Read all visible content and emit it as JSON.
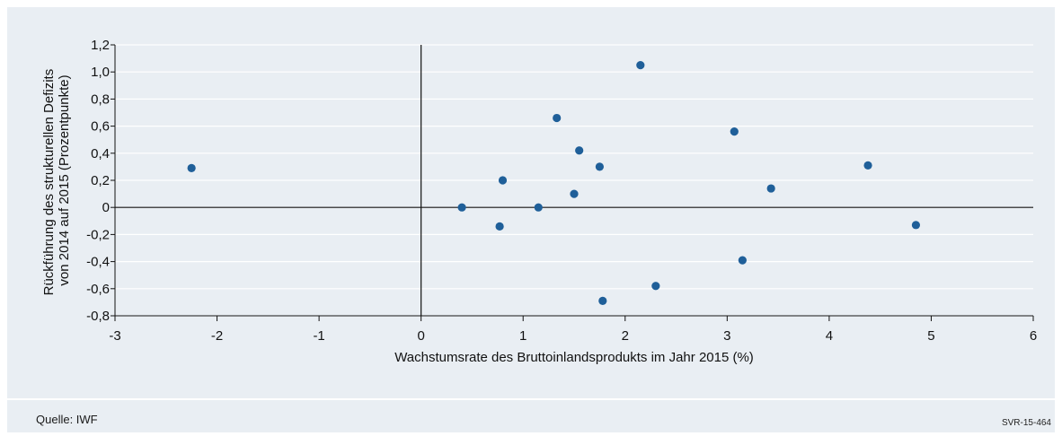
{
  "chart_data": {
    "type": "scatter",
    "xlabel": "Wachstumsrate des Bruttoinlandsprodukts im Jahr 2015 (%)",
    "ylabel_lines": [
      "Rückführung des strukturellen Defizits",
      "von 2014 auf 2015 (Prozentpunkte)"
    ],
    "xlim": [
      -3,
      6
    ],
    "ylim": [
      -0.8,
      1.2
    ],
    "xticks": [
      -3,
      -2,
      -1,
      0,
      1,
      2,
      3,
      4,
      5,
      6
    ],
    "xtick_labels": [
      "-3",
      "-2",
      "-1",
      "0",
      "1",
      "2",
      "3",
      "4",
      "5",
      "6"
    ],
    "yticks": [
      1.2,
      1.0,
      0.8,
      0.6,
      0.4,
      0.2,
      0,
      -0.2,
      -0.4,
      -0.6,
      -0.8
    ],
    "ytick_labels": [
      "1,2",
      "1,0",
      "0,8",
      "0,6",
      "0,4",
      "0,2",
      "0",
      "-0,2",
      "-0,4",
      "-0,6",
      "-0,8"
    ],
    "grid": true,
    "marker_color": "#1f5f99",
    "points": [
      {
        "x": -2.25,
        "y": 0.29
      },
      {
        "x": 0.4,
        "y": 0.0
      },
      {
        "x": 0.77,
        "y": -0.14
      },
      {
        "x": 0.8,
        "y": 0.2
      },
      {
        "x": 1.15,
        "y": 0.0
      },
      {
        "x": 1.33,
        "y": 0.66
      },
      {
        "x": 1.5,
        "y": 0.1
      },
      {
        "x": 1.55,
        "y": 0.42
      },
      {
        "x": 1.75,
        "y": 0.3
      },
      {
        "x": 1.78,
        "y": -0.69
      },
      {
        "x": 2.15,
        "y": 1.05
      },
      {
        "x": 2.3,
        "y": -0.58
      },
      {
        "x": 3.07,
        "y": 0.56
      },
      {
        "x": 3.15,
        "y": -0.39
      },
      {
        "x": 3.43,
        "y": 0.14
      },
      {
        "x": 4.38,
        "y": 0.31
      },
      {
        "x": 4.85,
        "y": -0.13
      }
    ]
  },
  "footer": {
    "source": "Quelle: IWF",
    "code": "SVR-15-464"
  }
}
